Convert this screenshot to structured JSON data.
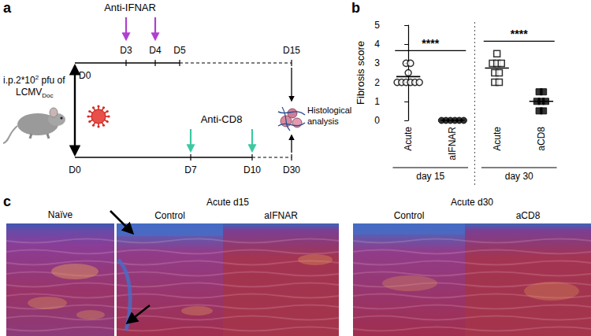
{
  "panel_labels": [
    "a",
    "b",
    "c"
  ],
  "panel_a": {
    "infection": {
      "text": "i.p.2*10",
      "superscript": "2",
      "text_after": " pfu of",
      "agent": "LCMV",
      "agent_subscript": "Doc"
    },
    "top_timeline": {
      "days": [
        "D0",
        "D3",
        "D4",
        "D5",
        "D15"
      ],
      "treatment": "Anti-IFNAR",
      "treatment_days": [
        "D3",
        "D4"
      ],
      "color": "#b13fcf"
    },
    "bottom_timeline": {
      "days": [
        "D0",
        "D7",
        "D10",
        "D30"
      ],
      "treatment": "Anti-CD8",
      "treatment_days": [
        "D7",
        "D10"
      ],
      "color": "#3cc9a2"
    },
    "readout": [
      "Histological",
      "analysis"
    ]
  },
  "chart_data": {
    "type": "scatter",
    "y_label": "Fibrosis score",
    "categories": [
      "Acute",
      "aIFNAR",
      "Acute",
      "aCD8"
    ],
    "series": [
      {
        "marker": "circle-open",
        "values": [
          [
            3,
            3,
            2.5,
            2,
            2,
            2,
            2,
            2,
            2
          ],
          null,
          null,
          null
        ]
      },
      {
        "marker": "circle",
        "values": [
          null,
          [
            0,
            0,
            0,
            0,
            0,
            0
          ],
          null,
          null
        ]
      },
      {
        "marker": "square-open",
        "values": [
          null,
          null,
          [
            3.5,
            3,
            3,
            3,
            2.5,
            2.5,
            2,
            2
          ],
          null
        ]
      },
      {
        "marker": "square",
        "values": [
          null,
          null,
          null,
          [
            1.5,
            1.5,
            1,
            1,
            1,
            0.5,
            0.5
          ]
        ]
      }
    ],
    "means": [
      2.3,
      0,
      2.75,
      1
    ],
    "color": "#000000",
    "ylim": [
      0,
      5
    ],
    "yticks": [
      0,
      1,
      2,
      3,
      4,
      5
    ],
    "grid": false,
    "annotations": [
      {
        "text": "****",
        "between": [
          0,
          1
        ]
      },
      {
        "text": "****",
        "between": [
          2,
          3
        ]
      }
    ],
    "groups": [
      {
        "label": "day 15",
        "between": [
          0,
          1
        ]
      },
      {
        "label": "day 30",
        "between": [
          2,
          3
        ]
      }
    ]
  },
  "panel_c": {
    "single": "Naïve",
    "groups": [
      {
        "title": "Acute d15",
        "images": [
          "Control",
          "aIFNAR"
        ]
      },
      {
        "title": "Acute d30",
        "images": [
          "Control",
          "aCD8"
        ]
      }
    ]
  }
}
